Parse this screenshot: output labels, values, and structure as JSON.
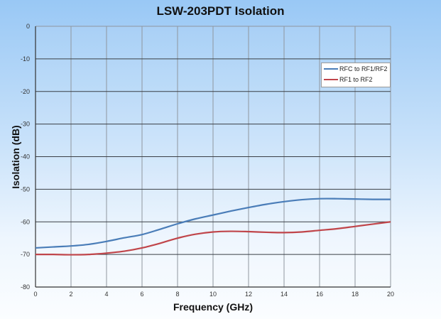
{
  "chart_data": {
    "type": "line",
    "title": "LSW-203PDT Isolation",
    "xlabel": "Frequency (GHz)",
    "ylabel": "Isolation (dB)",
    "xlim": [
      0,
      20
    ],
    "ylim": [
      -80,
      0
    ],
    "xticks": [
      0,
      2,
      4,
      6,
      8,
      10,
      12,
      14,
      16,
      18,
      20
    ],
    "yticks": [
      0,
      -10,
      -20,
      -30,
      -40,
      -50,
      -60,
      -70,
      -80
    ],
    "grid": true,
    "legend_position": "upper right",
    "x": [
      0,
      1,
      2,
      3,
      4,
      5,
      6,
      7,
      8,
      9,
      10,
      11,
      12,
      13,
      14,
      15,
      16,
      17,
      18,
      19,
      20
    ],
    "series": [
      {
        "name": "RFC to RF1/RF2",
        "color": "#4a7db8",
        "values": [
          -68.0,
          -67.7,
          -67.4,
          -66.9,
          -66.0,
          -64.9,
          -63.9,
          -62.3,
          -60.6,
          -59.1,
          -57.9,
          -56.7,
          -55.6,
          -54.6,
          -53.8,
          -53.2,
          -52.9,
          -52.9,
          -53.0,
          -53.1,
          -53.1
        ]
      },
      {
        "name": "RF1 to RF2",
        "color": "#c0454a",
        "values": [
          -70.0,
          -70.0,
          -70.1,
          -70.0,
          -69.6,
          -69.0,
          -68.0,
          -66.6,
          -65.0,
          -63.8,
          -63.1,
          -62.9,
          -63.0,
          -63.2,
          -63.3,
          -63.1,
          -62.6,
          -62.1,
          -61.4,
          -60.7,
          -60.0
        ]
      }
    ]
  }
}
